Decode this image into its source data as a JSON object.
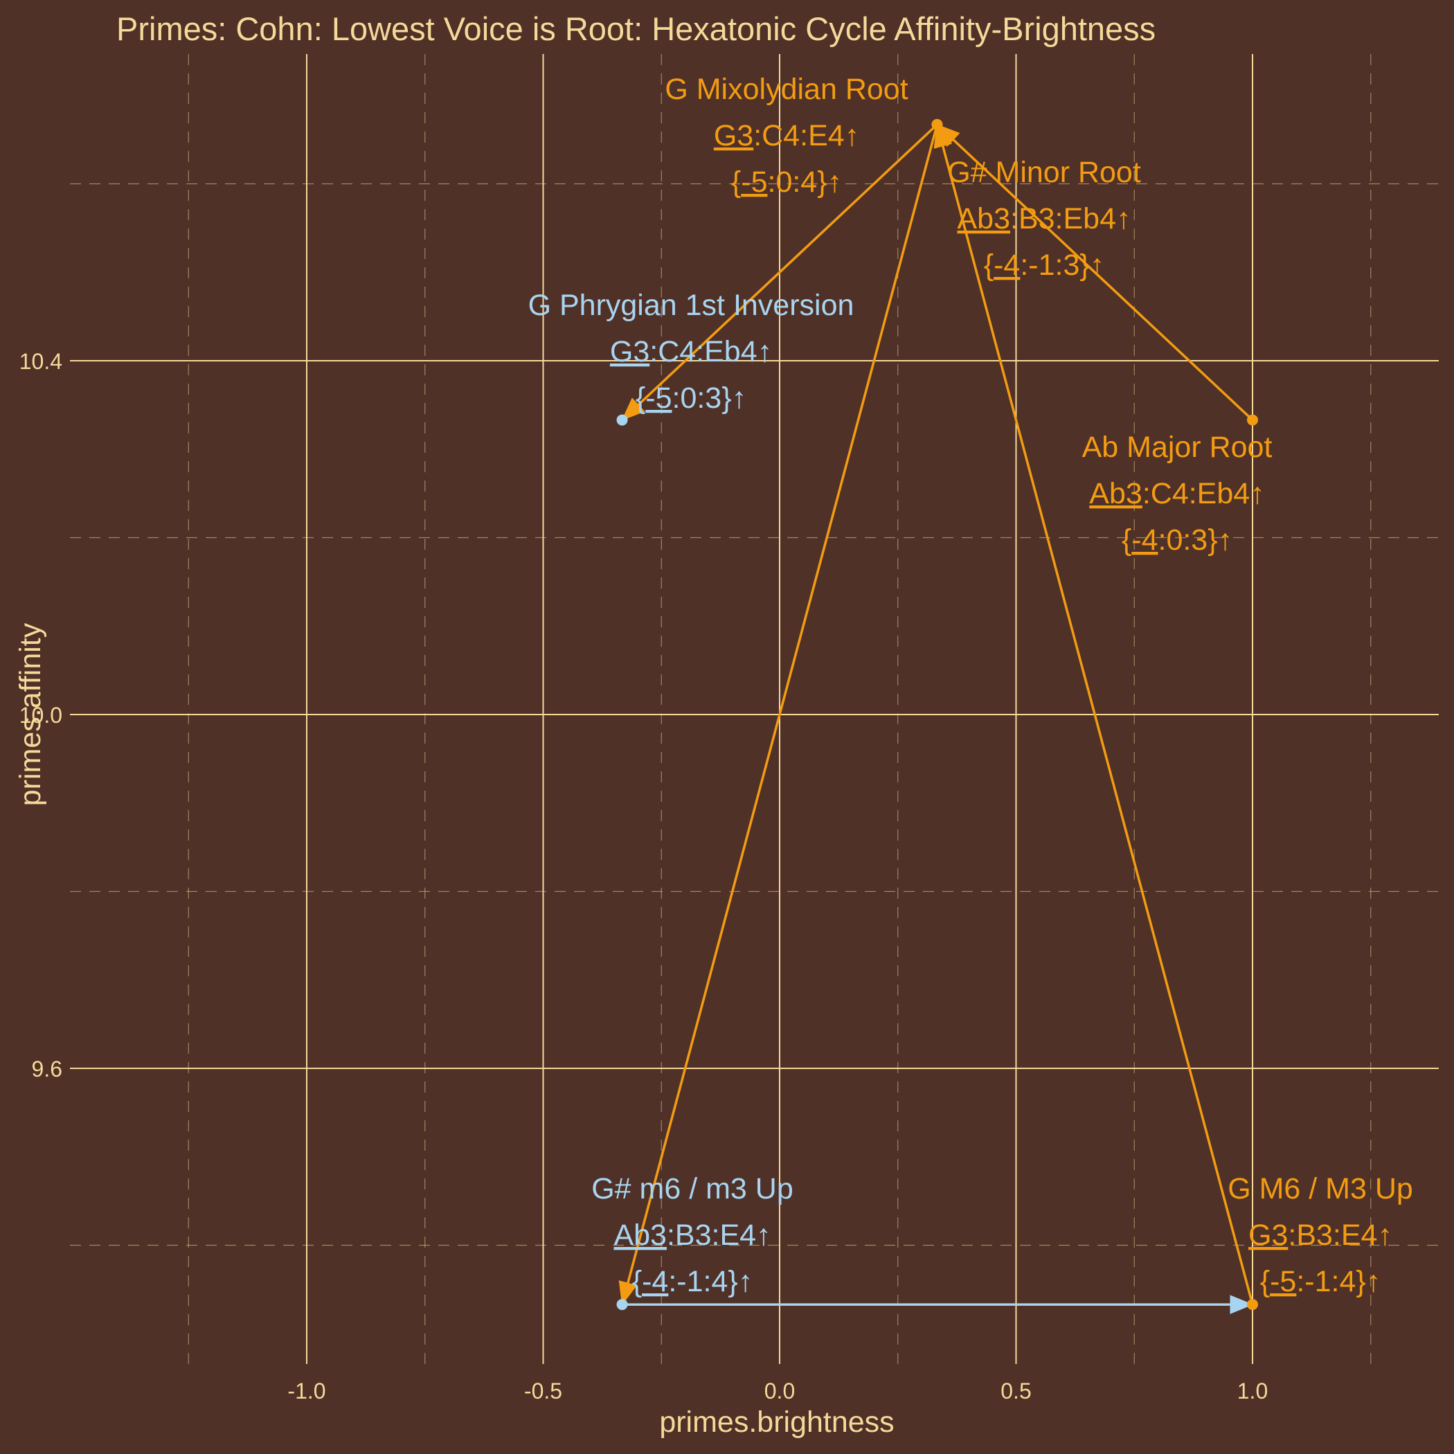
{
  "chart_data": {
    "type": "scatter",
    "title": "Primes: Cohn: Lowest Voice is Root: Hexatonic Cycle Affinity-Brightness",
    "xlabel": "primes.brightness",
    "ylabel": "primes.affinity",
    "xlim": [
      -1.333,
      1.333
    ],
    "ylim": [
      9.333,
      10.667
    ],
    "x_ticks": [
      -1.0,
      -0.5,
      0.0,
      0.5,
      1.0
    ],
    "x_tick_labels": [
      "-1.0",
      "-0.5",
      "0.0",
      "0.5",
      "1.0"
    ],
    "y_ticks": [
      9.6,
      10.0,
      10.4
    ],
    "y_tick_labels": [
      "9.6",
      "10.0",
      "10.4"
    ],
    "grid": true,
    "colors": {
      "background": "#4f3127",
      "grid": "#f5d99a",
      "text": "#f5d99a",
      "orange": "#f39c12",
      "blue": "#a9d4f0"
    },
    "points": [
      {
        "id": "g-mixolydian-root",
        "x": 0.333,
        "y": 10.667,
        "color": "orange",
        "labels": [
          "G  Mixolydian Root",
          "G3:C4:E4↑",
          "{-5:0:4}↑"
        ],
        "underline": [
          "G3",
          "-5"
        ]
      },
      {
        "id": "gsharp-minor-root",
        "x": 0.333,
        "y": 10.667,
        "color": "orange",
        "labels": [
          "G# Minor Root",
          "Ab3:B3:Eb4↑",
          "{-4:-1:3}↑"
        ],
        "underline": [
          "Ab3",
          "-4"
        ]
      },
      {
        "id": "g-phrygian-1st-inversion",
        "x": -0.333,
        "y": 10.333,
        "color": "blue",
        "labels": [
          "G  Phrygian 1st Inversion",
          "G3:C4:Eb4↑",
          "{-5:0:3}↑"
        ],
        "underline": [
          "G3",
          "-5"
        ]
      },
      {
        "id": "ab-major-root",
        "x": 1.0,
        "y": 10.333,
        "color": "orange",
        "labels": [
          "Ab Major Root",
          "Ab3:C4:Eb4↑",
          "{-4:0:3}↑"
        ],
        "underline": [
          "Ab3",
          "-4"
        ]
      },
      {
        "id": "gsharp-m6-m3-up",
        "x": -0.333,
        "y": 9.333,
        "color": "blue",
        "labels": [
          "G# m6 / m3 Up",
          "Ab3:B3:E4↑",
          "{-4:-1:4}↑"
        ],
        "underline": [
          "Ab3",
          "-4"
        ]
      },
      {
        "id": "g-M6-M3-up",
        "x": 1.0,
        "y": 9.333,
        "color": "orange",
        "labels": [
          "G  M6 / M3 Up",
          "G3:B3:E4↑",
          "{-5:-1:4}↑"
        ],
        "underline": [
          "G3",
          "-5"
        ]
      }
    ],
    "edges": [
      {
        "from": "ab-major-root",
        "to": "gsharp-minor-root",
        "color": "orange"
      },
      {
        "from": "g-mixolydian-root",
        "to": "g-phrygian-1st-inversion",
        "color": "orange"
      },
      {
        "from": "gsharp-minor-root",
        "to": "gsharp-m6-m3-up",
        "color": "orange"
      },
      {
        "from": "gsharp-m6-m3-up",
        "to": "g-M6-M3-up",
        "color": "blue"
      },
      {
        "from": "g-M6-M3-up",
        "to": "g-mixolydian-root",
        "color": "orange"
      }
    ]
  }
}
